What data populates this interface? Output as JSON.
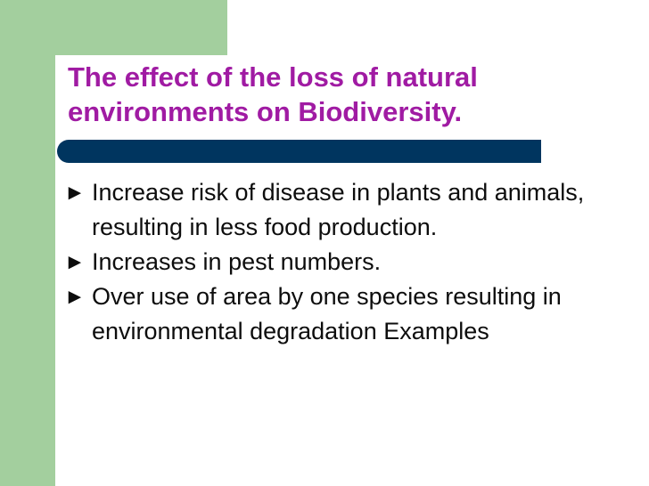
{
  "slide": {
    "title": "The effect of the loss of natural environments on Biodiversity.",
    "bullet_icon": "filled-triangle-bullet",
    "bullets": [
      {
        "text": "Increase risk of disease in plants and animals, resulting in less food production."
      },
      {
        "text": "Increases in pest numbers."
      },
      {
        "text": "Over use of area by one species resulting in environmental degradation Examples"
      }
    ]
  },
  "colors": {
    "title": "#a01ba3",
    "accent_green": "#a3cf9e",
    "title_bar": "#00355f",
    "body_text": "#0d0d0d"
  }
}
